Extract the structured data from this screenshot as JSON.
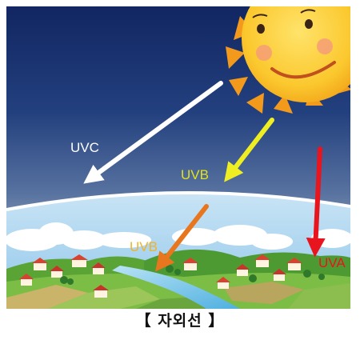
{
  "labels": {
    "uvc": "UVC",
    "uvb_upper": "UVB",
    "uvb_lower": "UVB",
    "uva": "UVA"
  },
  "caption": "【 자외선 】",
  "colors": {
    "uvc": "#ffffff",
    "uvb_upper": "#eeee22",
    "uvb_lower": "#e8761e",
    "uva": "#e8141e",
    "sky_top": "#142a66",
    "sun": "#f7b81e"
  }
}
